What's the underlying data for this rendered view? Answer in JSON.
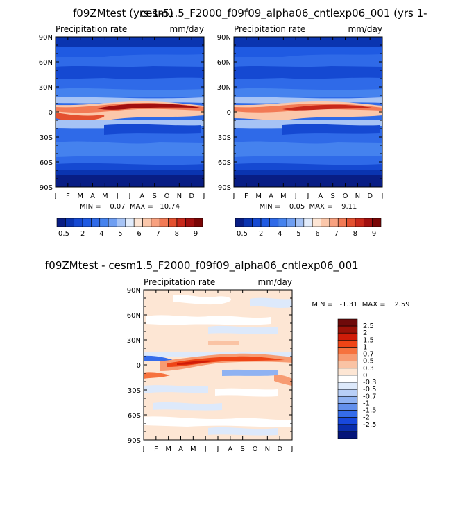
{
  "titles": {
    "top_left": "f09ZMtest (yrs 1-5)",
    "top_right": "cesm1.5_F2000_f09f09_alpha06_cntlexp06_001 (yrs 1-",
    "bottom": "f09ZMtest - cesm1.5_F2000_f09f09_alpha06_cntlexp06_001"
  },
  "palettes": {
    "abs_levels": [
      "#081d84",
      "#0a34b0",
      "#1549d2",
      "#1f5ae2",
      "#2f6ae8",
      "#4582ee",
      "#6e9ef2",
      "#a6c3f5",
      "#e2ecfb",
      "#fde5d4",
      "#fbc7aa",
      "#f8a17f",
      "#f27a55",
      "#e4502f",
      "#c8281a",
      "#a10f0f",
      "#7a0505"
    ],
    "diff_levels": [
      "#6e0a0a",
      "#9c1208",
      "#d01c08",
      "#ef4516",
      "#f6723e",
      "#f79b72",
      "#fac3a4",
      "#fde6d4",
      "#ffffff",
      "#dde9fb",
      "#b8cff7",
      "#8fb2f2",
      "#6390ec",
      "#356cea",
      "#1848dc",
      "#0a2dac",
      "#041479"
    ]
  },
  "chart_data": [
    {
      "type": "heatmap",
      "id": "panel-control",
      "title": "f09ZMtest (yrs 1-5)",
      "left_label": "Precipitation rate",
      "right_label": "mm/day",
      "x_categories": [
        "J",
        "F",
        "M",
        "A",
        "M",
        "J",
        "J",
        "A",
        "S",
        "O",
        "N",
        "D",
        "J"
      ],
      "y_ticks": [
        "90N",
        "60N",
        "30N",
        "0",
        "30S",
        "60S",
        "90S"
      ],
      "ylim": [
        -90,
        90
      ],
      "stats_text": "MIN =    0.07  MAX =   10.74",
      "min": 0.07,
      "max": 10.74,
      "colorbar_labels": [
        "0.5",
        "2",
        "4",
        "5",
        "6",
        "7",
        "8",
        "9"
      ]
    },
    {
      "type": "heatmap",
      "id": "panel-cntl",
      "title": "cesm1.5_F2000_f09f09_alpha06_cntlexp06_001 (yrs 1-",
      "left_label": "Precipitation rate",
      "right_label": "mm/day",
      "x_categories": [
        "J",
        "F",
        "M",
        "A",
        "M",
        "J",
        "J",
        "A",
        "S",
        "O",
        "N",
        "D",
        "J"
      ],
      "y_ticks": [
        "90N",
        "60N",
        "30N",
        "0",
        "30S",
        "60S",
        "90S"
      ],
      "ylim": [
        -90,
        90
      ],
      "stats_text": "MIN =    0.05  MAX =    9.11",
      "min": 0.05,
      "max": 9.11,
      "colorbar_labels": [
        "0.5",
        "2",
        "4",
        "5",
        "6",
        "7",
        "8",
        "9"
      ]
    },
    {
      "type": "heatmap",
      "id": "panel-diff",
      "title": "f09ZMtest - cesm1.5_F2000_f09f09_alpha06_cntlexp06_001",
      "left_label": "Precipitation rate",
      "right_label": "mm/day",
      "x_categories": [
        "J",
        "F",
        "M",
        "A",
        "M",
        "J",
        "J",
        "A",
        "S",
        "O",
        "N",
        "D",
        "J"
      ],
      "y_ticks": [
        "90N",
        "60N",
        "30N",
        "0",
        "30S",
        "60S",
        "90S"
      ],
      "ylim": [
        -90,
        90
      ],
      "stats_text": "MIN =   -1.31  MAX =    2.59",
      "min": -1.31,
      "max": 2.59,
      "colorbar_labels": [
        "2.5",
        "2",
        "1.5",
        "1",
        "0.7",
        "0.5",
        "0.3",
        "0",
        "-0.3",
        "-0.5",
        "-0.7",
        "-1",
        "-1.5",
        "-2",
        "-2.5"
      ]
    }
  ]
}
